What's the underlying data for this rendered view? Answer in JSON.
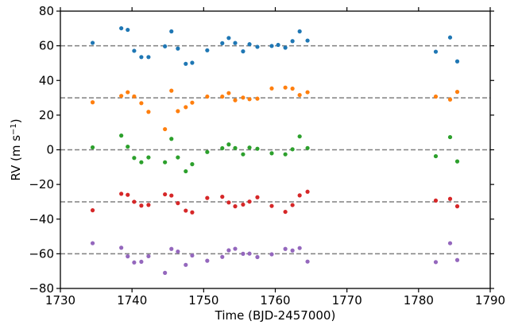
{
  "chart_data": {
    "type": "scatter",
    "xlabel": "Time (BJD-2457000)",
    "ylabel_main": "RV (m s",
    "ylabel_sup": "−1",
    "ylabel_close": ")",
    "xlim": [
      1730,
      1790
    ],
    "ylim": [
      -80,
      80
    ],
    "xticks": [
      1730,
      1740,
      1750,
      1760,
      1770,
      1780,
      1790
    ],
    "yticks": [
      -80,
      -60,
      -40,
      -20,
      0,
      20,
      40,
      60,
      80
    ],
    "yticks_labels": [
      "−80",
      "−60",
      "−40",
      "−20",
      "0",
      "20",
      "40",
      "60",
      "80"
    ],
    "grid": false,
    "reference_lines": [
      60,
      30,
      0,
      -30,
      -60
    ],
    "reference_line_color": "#808080",
    "series": [
      {
        "color": "#1f77b4",
        "x": [
          1734.5,
          1738.5,
          1739.4,
          1740.3,
          1741.3,
          1742.3,
          1744.6,
          1745.5,
          1746.4,
          1747.5,
          1748.4,
          1750.5,
          1752.6,
          1753.5,
          1754.4,
          1755.5,
          1756.4,
          1757.5,
          1759.5,
          1760.4,
          1761.4,
          1762.4,
          1763.4,
          1764.5,
          1782.4,
          1784.4,
          1785.4
        ],
        "y": [
          61.7,
          70.1,
          69.2,
          57.1,
          53.5,
          53.5,
          59.7,
          68.3,
          58.4,
          49.6,
          50.2,
          57.4,
          61.5,
          64.5,
          61.6,
          56.8,
          60.9,
          59.4,
          59.9,
          60.5,
          58.9,
          62.7,
          68.3,
          63.0,
          56.6,
          64.8,
          51.0
        ]
      },
      {
        "color": "#ff7f0e",
        "x": [
          1734.5,
          1738.5,
          1739.4,
          1740.3,
          1741.3,
          1742.3,
          1744.6,
          1745.5,
          1746.4,
          1747.5,
          1748.4,
          1750.5,
          1752.6,
          1753.5,
          1754.4,
          1755.5,
          1756.4,
          1757.5,
          1759.5,
          1761.4,
          1762.4,
          1763.4,
          1764.5,
          1782.4,
          1784.4,
          1785.4
        ],
        "y": [
          27.4,
          31.1,
          33.2,
          30.8,
          26.9,
          21.9,
          11.9,
          34.1,
          22.3,
          24.6,
          27.2,
          30.7,
          30.7,
          32.7,
          28.6,
          30.1,
          29.2,
          29.5,
          35.4,
          35.9,
          35.3,
          31.6,
          33.2,
          30.7,
          29.0,
          33.4
        ]
      },
      {
        "color": "#2ca02c",
        "x": [
          1734.5,
          1738.5,
          1739.4,
          1740.3,
          1741.3,
          1742.3,
          1744.6,
          1745.5,
          1746.4,
          1747.5,
          1748.4,
          1750.5,
          1752.6,
          1753.5,
          1754.4,
          1755.5,
          1756.4,
          1757.5,
          1759.5,
          1761.4,
          1762.4,
          1763.4,
          1764.5,
          1782.4,
          1784.4,
          1785.4
        ],
        "y": [
          1.4,
          8.2,
          1.8,
          -4.7,
          -7.2,
          -4.4,
          -7.2,
          6.3,
          -4.4,
          -12.4,
          -8.3,
          -1.3,
          0.9,
          3.1,
          1.0,
          -2.6,
          1.3,
          0.6,
          -2.0,
          -2.6,
          0.3,
          7.7,
          1.0,
          -3.7,
          7.3,
          -6.7
        ]
      },
      {
        "color": "#d62728",
        "x": [
          1734.5,
          1738.5,
          1739.4,
          1740.3,
          1741.3,
          1742.3,
          1744.6,
          1745.5,
          1746.4,
          1747.5,
          1748.4,
          1750.5,
          1752.6,
          1753.5,
          1754.4,
          1755.5,
          1756.4,
          1757.5,
          1759.5,
          1761.4,
          1762.4,
          1763.4,
          1764.5,
          1782.4,
          1784.4,
          1785.4
        ],
        "y": [
          -34.9,
          -25.4,
          -26.0,
          -30.0,
          -32.2,
          -31.8,
          -25.7,
          -26.4,
          -30.8,
          -35.1,
          -36.1,
          -27.8,
          -27.1,
          -30.4,
          -32.6,
          -31.6,
          -29.9,
          -27.4,
          -32.4,
          -35.8,
          -31.9,
          -26.3,
          -24.2,
          -29.3,
          -28.3,
          -32.6
        ]
      },
      {
        "color": "#9467bd",
        "x": [
          1734.5,
          1738.5,
          1739.4,
          1740.3,
          1741.3,
          1742.3,
          1744.6,
          1745.5,
          1746.4,
          1747.5,
          1748.4,
          1750.5,
          1752.6,
          1753.5,
          1754.4,
          1755.5,
          1756.4,
          1757.5,
          1759.5,
          1761.4,
          1762.4,
          1763.4,
          1764.5,
          1782.4,
          1784.4,
          1785.4
        ],
        "y": [
          -53.9,
          -56.5,
          -61.5,
          -65.0,
          -64.6,
          -61.4,
          -71.0,
          -57.2,
          -58.7,
          -66.4,
          -61.0,
          -64.0,
          -61.8,
          -58.0,
          -57.1,
          -60.0,
          -59.9,
          -61.9,
          -60.3,
          -57.2,
          -58.1,
          -56.7,
          -64.5,
          -64.8,
          -53.9,
          -63.6
        ]
      }
    ]
  }
}
